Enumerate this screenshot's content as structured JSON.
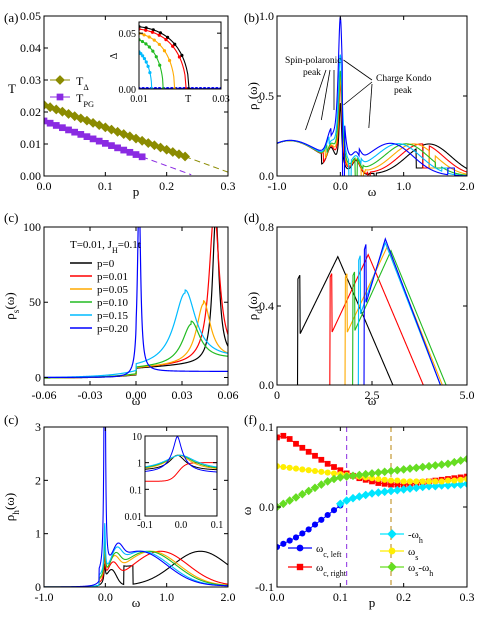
{
  "chart_data": [
    {
      "panel": "(a)",
      "type": "scatter",
      "xlabel": "p",
      "ylabel": "T",
      "xlim": [
        0,
        0.3
      ],
      "ylim": [
        0,
        0.05
      ],
      "xticks": [
        "0.0",
        "0.1",
        "0.2",
        "0.3"
      ],
      "yticks": [
        "0.00",
        "0.01",
        "0.02",
        "0.03",
        "0.04",
        "0.05"
      ],
      "legend": [
        "T_Δ",
        "T_PG"
      ],
      "series": [
        {
          "name": "T_Δ",
          "color": "#8b8b00",
          "marker": "diamond",
          "x": [
            0.0,
            0.01,
            0.02,
            0.03,
            0.04,
            0.05,
            0.06,
            0.07,
            0.08,
            0.09,
            0.1,
            0.11,
            0.12,
            0.13,
            0.14,
            0.15,
            0.16,
            0.17,
            0.18,
            0.19,
            0.2,
            0.21,
            0.22,
            0.23
          ],
          "y": [
            0.0222,
            0.0215,
            0.0208,
            0.0201,
            0.0194,
            0.0187,
            0.018,
            0.0173,
            0.0166,
            0.0159,
            0.0152,
            0.0145,
            0.0138,
            0.0131,
            0.0124,
            0.0117,
            0.011,
            0.0103,
            0.0096,
            0.0089,
            0.0082,
            0.0075,
            0.0068,
            0.0061
          ]
        },
        {
          "name": "T_PG",
          "color": "#8a2be2",
          "marker": "square",
          "x": [
            0.0,
            0.01,
            0.02,
            0.03,
            0.04,
            0.05,
            0.06,
            0.07,
            0.08,
            0.09,
            0.1,
            0.11,
            0.12,
            0.13,
            0.14,
            0.15,
            0.16
          ],
          "y": [
            0.0172,
            0.0165,
            0.0158,
            0.0151,
            0.0144,
            0.0137,
            0.013,
            0.0123,
            0.0116,
            0.0109,
            0.0102,
            0.0095,
            0.0088,
            0.0081,
            0.0074,
            0.0067,
            0.006
          ]
        }
      ],
      "inset": {
        "xlabel": "T",
        "ylabel": "Δ",
        "xlim": [
          0.01,
          0.03
        ],
        "ylim": [
          0,
          0.06
        ],
        "xticks": [
          "0.01",
          "0.03"
        ],
        "yticks": [
          "0.00",
          "0.05"
        ],
        "curves": [
          {
            "color": "#000000",
            "tc": 0.0222,
            "d0": 0.057
          },
          {
            "color": "#ff0000",
            "tc": 0.0215,
            "d0": 0.055
          },
          {
            "color": "#ffaa00",
            "tc": 0.0187,
            "d0": 0.052
          },
          {
            "color": "#22bb22",
            "tc": 0.0159,
            "d0": 0.048
          },
          {
            "color": "#00bbff",
            "tc": 0.0131,
            "d0": 0.041
          },
          {
            "color": "#0000ff",
            "tc": 0.0096,
            "d0": 0.03
          }
        ]
      }
    },
    {
      "panel": "(b)",
      "type": "line",
      "xlabel": "ω",
      "ylabel": "ρ_c(ω)",
      "xlim": [
        -1.0,
        2.0
      ],
      "ylim": [
        0,
        1.0
      ],
      "xticks": [
        "-1.0",
        "0.0",
        "1.0",
        "2.0"
      ],
      "yticks": [
        "0.0",
        "0.5",
        "1.0"
      ],
      "annotations": [
        "Spin-polaronic peak",
        "Charge Kondo peak"
      ]
    },
    {
      "panel": "(c)",
      "type": "line",
      "xlabel": "ω",
      "ylabel": "ρ_s(ω)",
      "xlim": [
        -0.06,
        0.06
      ],
      "ylim": [
        -5,
        100
      ],
      "xticks": [
        "-0.06",
        "-0.03",
        "0.00",
        "0.03",
        "0.06"
      ],
      "yticks": [
        "0",
        "50",
        "100"
      ],
      "legend_title": "T=0.01, J_H=0.1t",
      "series": [
        {
          "name": "p=0",
          "color": "#000000"
        },
        {
          "name": "p=0.01",
          "color": "#ff0000"
        },
        {
          "name": "p=0.05",
          "color": "#ffaa00"
        },
        {
          "name": "p=0.10",
          "color": "#22bb22"
        },
        {
          "name": "p=0.15",
          "color": "#00bbff"
        },
        {
          "name": "p=0.20",
          "color": "#0000ff"
        }
      ]
    },
    {
      "panel": "(d)",
      "type": "line",
      "xlabel": "ω",
      "ylabel": "ρ_d(ω)",
      "xlim": [
        0,
        5.0
      ],
      "ylim": [
        0,
        0.8
      ],
      "xticks": [
        "0",
        "2.5",
        "5.0"
      ],
      "yticks": [
        "0.0",
        "0.4",
        "0.8"
      ]
    },
    {
      "panel": "(c)",
      "type": "line",
      "xlabel": "ω",
      "ylabel": "ρ_h(ω)",
      "xlim": [
        -1.0,
        2.0
      ],
      "ylim": [
        0,
        3
      ],
      "xticks": [
        "-1.0",
        "0.0",
        "1.0",
        "2.0"
      ],
      "yticks": [
        "0",
        "1",
        "2",
        "3"
      ],
      "inset": {
        "xlim": [
          -0.1,
          0.1
        ],
        "xticks": [
          "-0.1",
          "0.0",
          "0.1"
        ],
        "yticks": [
          "0.01",
          "0.1",
          "1",
          "10"
        ],
        "yscale": "log"
      }
    },
    {
      "panel": "(f)",
      "type": "scatter",
      "xlabel": "p",
      "ylabel": "ω",
      "xlim": [
        0,
        0.3
      ],
      "ylim": [
        -0.1,
        0.1
      ],
      "xticks": [
        "0.0",
        "0.1",
        "0.2",
        "0.3"
      ],
      "yticks": [
        "-0.1",
        "0.0",
        "0.1"
      ],
      "vlines": [
        {
          "x": 0.11,
          "color": "#8a2be2"
        },
        {
          "x": 0.18,
          "color": "#b8860b"
        }
      ],
      "series": [
        {
          "name": "ω_c, left",
          "color": "#0000ff",
          "marker": "circle",
          "x": [
            0.0,
            0.01,
            0.02,
            0.03,
            0.04,
            0.05,
            0.06,
            0.07,
            0.08,
            0.09,
            0.1
          ],
          "y": [
            -0.05,
            -0.046,
            -0.042,
            -0.038,
            -0.033,
            -0.028,
            -0.022,
            -0.016,
            -0.01,
            -0.004,
            0.002
          ]
        },
        {
          "name": "ω_c, right",
          "color": "#ff0000",
          "marker": "square",
          "x": [
            0.0,
            0.01,
            0.02,
            0.03,
            0.04,
            0.05,
            0.06,
            0.07,
            0.08,
            0.09,
            0.1,
            0.11,
            0.12,
            0.13,
            0.14,
            0.15,
            0.16,
            0.17,
            0.18,
            0.19,
            0.2,
            0.21,
            0.22,
            0.23,
            0.24,
            0.25,
            0.26,
            0.27,
            0.28,
            0.29,
            0.3
          ],
          "y": [
            0.087,
            0.089,
            0.085,
            0.079,
            0.074,
            0.069,
            0.064,
            0.059,
            0.054,
            0.05,
            0.046,
            0.042,
            0.039,
            0.036,
            0.034,
            0.032,
            0.03,
            0.029,
            0.028,
            0.028,
            0.028,
            0.029,
            0.03,
            0.031,
            0.032,
            0.033,
            0.034,
            0.035,
            0.036,
            0.037,
            0.038
          ]
        },
        {
          "name": "-ω_h",
          "color": "#00e5ff",
          "marker": "diamond",
          "x": [
            0.1,
            0.11,
            0.12,
            0.13,
            0.14,
            0.15,
            0.16,
            0.17,
            0.18,
            0.19,
            0.2,
            0.21,
            0.22,
            0.23,
            0.24,
            0.25,
            0.26,
            0.27,
            0.28,
            0.29,
            0.3
          ],
          "y": [
            0.004,
            0.008,
            0.011,
            0.013,
            0.015,
            0.017,
            0.018,
            0.019,
            0.02,
            0.021,
            0.022,
            0.023,
            0.024,
            0.025,
            0.026,
            0.026,
            0.027,
            0.027,
            0.028,
            0.028,
            0.029
          ]
        },
        {
          "name": "ω_s",
          "color": "#ffee00",
          "marker": "circle",
          "x": [
            0.0,
            0.01,
            0.02,
            0.03,
            0.04,
            0.05,
            0.06,
            0.07,
            0.08,
            0.09,
            0.1,
            0.11,
            0.12,
            0.13,
            0.14,
            0.15,
            0.16,
            0.17,
            0.18,
            0.19,
            0.2,
            0.21,
            0.22,
            0.23,
            0.24,
            0.25,
            0.26,
            0.27,
            0.28,
            0.29,
            0.3
          ],
          "y": [
            0.051,
            0.05,
            0.049,
            0.048,
            0.047,
            0.046,
            0.045,
            0.044,
            0.043,
            0.042,
            0.041,
            0.04,
            0.039,
            0.038,
            0.037,
            0.036,
            0.035,
            0.034,
            0.033,
            0.033,
            0.032,
            0.032,
            0.032,
            0.032,
            0.032,
            0.032,
            0.032,
            0.033,
            0.033,
            0.034,
            0.035
          ]
        },
        {
          "name": "ω_s-ω_h",
          "color": "#66dd22",
          "marker": "diamond",
          "x": [
            0.0,
            0.01,
            0.02,
            0.03,
            0.04,
            0.05,
            0.06,
            0.07,
            0.08,
            0.09,
            0.1,
            0.11,
            0.12,
            0.13,
            0.14,
            0.15,
            0.16,
            0.17,
            0.18,
            0.19,
            0.2,
            0.21,
            0.22,
            0.23,
            0.24,
            0.25,
            0.26,
            0.27,
            0.28,
            0.29,
            0.3
          ],
          "y": [
            0.0,
            0.004,
            0.008,
            0.012,
            0.016,
            0.02,
            0.024,
            0.028,
            0.032,
            0.035,
            0.037,
            0.038,
            0.039,
            0.04,
            0.041,
            0.042,
            0.043,
            0.044,
            0.045,
            0.046,
            0.047,
            0.048,
            0.049,
            0.05,
            0.051,
            0.052,
            0.053,
            0.054,
            0.056,
            0.058,
            0.06
          ]
        }
      ]
    }
  ]
}
